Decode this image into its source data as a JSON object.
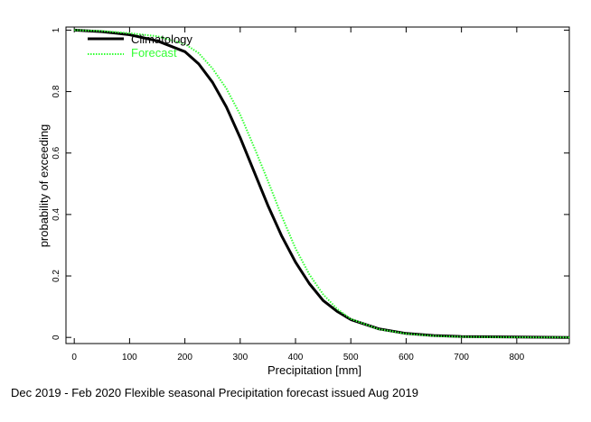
{
  "caption": "Dec 2019 - Feb 2020 Flexible seasonal Precipitation forecast issued Aug 2019",
  "chart_data": {
    "type": "line",
    "title": "",
    "xlabel": "Precipitation [mm]",
    "ylabel": "probability of exceeding",
    "xlim": [
      -15,
      895
    ],
    "ylim": [
      -0.02,
      1.01
    ],
    "xticks": [
      0,
      100,
      200,
      300,
      400,
      500,
      600,
      700,
      800
    ],
    "yticks": [
      0,
      0.2,
      0.4,
      0.6,
      0.8,
      1
    ],
    "ytick_labels": [
      "0",
      "0.2",
      "0.4",
      "0.6",
      "0.8",
      "1"
    ],
    "grid": false,
    "legend_position": "top-left",
    "series": [
      {
        "name": "Climatology",
        "color": "#000000",
        "style": "solid",
        "x": [
          0,
          50,
          100,
          150,
          200,
          225,
          250,
          275,
          300,
          325,
          350,
          375,
          400,
          425,
          450,
          475,
          500,
          550,
          600,
          650,
          700,
          800,
          895
        ],
        "y": [
          1.0,
          0.995,
          0.985,
          0.965,
          0.93,
          0.89,
          0.83,
          0.75,
          0.65,
          0.54,
          0.43,
          0.33,
          0.245,
          0.175,
          0.12,
          0.085,
          0.058,
          0.028,
          0.013,
          0.006,
          0.003,
          0.001,
          0.0
        ]
      },
      {
        "name": "Forecast",
        "color": "#33ff33",
        "style": "dotted",
        "x": [
          0,
          50,
          100,
          150,
          200,
          225,
          250,
          275,
          300,
          325,
          350,
          375,
          400,
          425,
          450,
          475,
          500,
          550,
          600,
          650,
          700,
          800,
          895
        ],
        "y": [
          1.0,
          0.997,
          0.99,
          0.98,
          0.955,
          0.925,
          0.875,
          0.81,
          0.725,
          0.62,
          0.51,
          0.395,
          0.29,
          0.205,
          0.14,
          0.093,
          0.06,
          0.027,
          0.012,
          0.005,
          0.002,
          0.0005,
          0.0
        ]
      }
    ]
  }
}
